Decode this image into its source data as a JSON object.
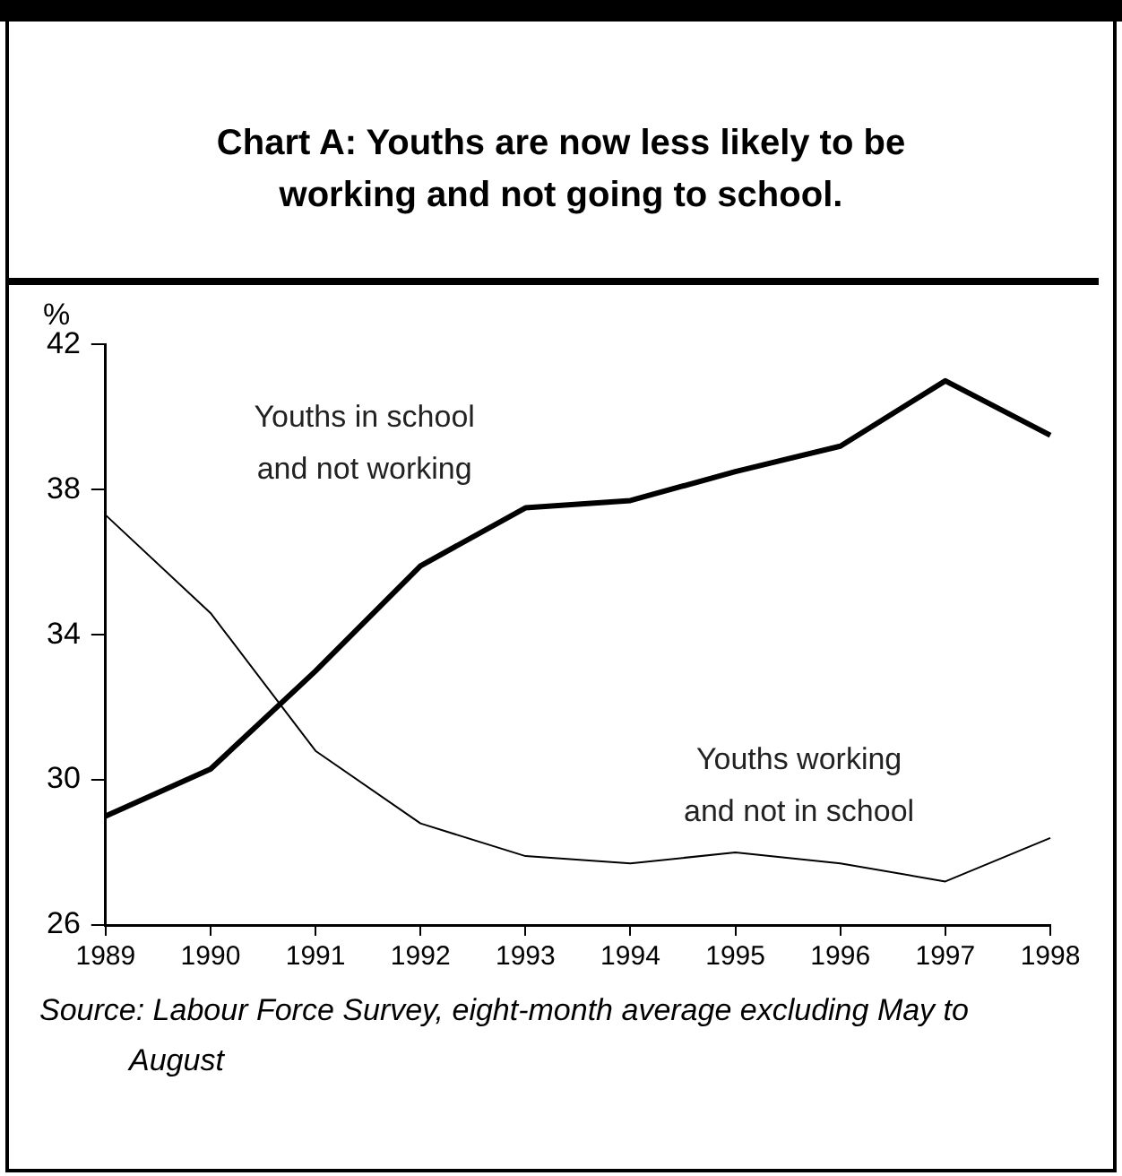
{
  "chart_data": {
    "type": "line",
    "title": "Chart A: Youths are now less likely to be working and not going to school.",
    "ylabel": "%",
    "categories": [
      "1989",
      "1990",
      "1991",
      "1992",
      "1993",
      "1994",
      "1995",
      "1996",
      "1997",
      "1998"
    ],
    "series": [
      {
        "name": "Youths in school and not working",
        "color": "#000000",
        "values": [
          29.0,
          30.3,
          33.0,
          35.9,
          37.5,
          37.7,
          38.5,
          39.2,
          41.0,
          39.5
        ]
      },
      {
        "name": "Youths working and not in school",
        "color": "#000000",
        "values": [
          37.3,
          34.6,
          30.8,
          28.8,
          27.9,
          27.7,
          28.0,
          27.7,
          27.2,
          28.4
        ]
      }
    ],
    "ylim": [
      26,
      42
    ],
    "yticks": [
      26,
      30,
      34,
      38,
      42
    ],
    "grid": false,
    "legend": false,
    "marker": "none",
    "line_style": "solid",
    "annotations": [
      "Source: Labour Force Survey, eight-month average excluding May to August"
    ]
  }
}
